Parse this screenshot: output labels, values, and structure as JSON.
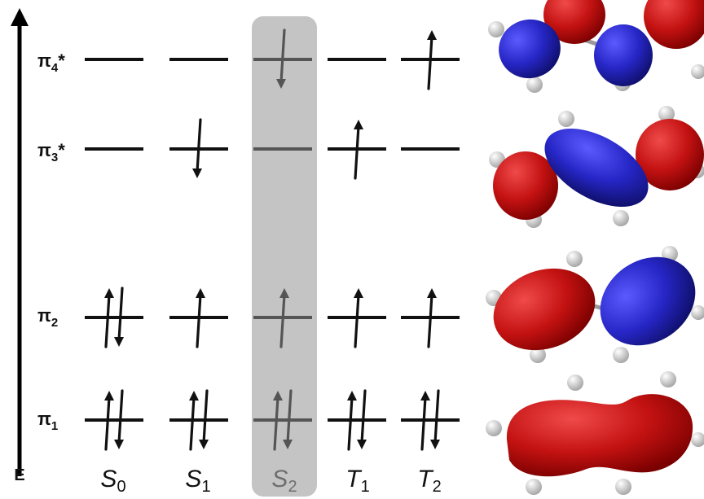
{
  "axis": {
    "label": "E"
  },
  "orbitals": [
    {
      "id": "pi4",
      "base": "π",
      "sub": "4",
      "sup": "*"
    },
    {
      "id": "pi3",
      "base": "π",
      "sub": "3",
      "sup": "*"
    },
    {
      "id": "pi2",
      "base": "π",
      "sub": "2",
      "sup": ""
    },
    {
      "id": "pi1",
      "base": "π",
      "sub": "1",
      "sup": ""
    }
  ],
  "states": [
    {
      "id": "S0",
      "letter": "S",
      "sub": "0",
      "highlighted": false,
      "occupancy": {
        "pi1": "up-down",
        "pi2": "up-down",
        "pi3": "empty",
        "pi4": "empty"
      }
    },
    {
      "id": "S1",
      "letter": "S",
      "sub": "1",
      "highlighted": false,
      "occupancy": {
        "pi1": "up-down",
        "pi2": "up",
        "pi3": "down",
        "pi4": "empty"
      }
    },
    {
      "id": "S2",
      "letter": "S",
      "sub": "2",
      "highlighted": true,
      "occupancy": {
        "pi1": "up-down",
        "pi2": "up",
        "pi3": "empty",
        "pi4": "down"
      }
    },
    {
      "id": "T1",
      "letter": "T",
      "sub": "1",
      "highlighted": false,
      "occupancy": {
        "pi1": "up-down",
        "pi2": "up",
        "pi3": "up",
        "pi4": "empty"
      }
    },
    {
      "id": "T2",
      "letter": "T",
      "sub": "2",
      "highlighted": false,
      "occupancy": {
        "pi1": "up-down",
        "pi2": "up",
        "pi3": "empty",
        "pi4": "up"
      }
    }
  ],
  "colors": {
    "text": "#111111",
    "highlight": "#c4c4c4",
    "dim_line": "#555555",
    "lobe_red": "#c41212",
    "lobe_blue": "#2626c6",
    "hydrogen": "#e6e6e6"
  }
}
